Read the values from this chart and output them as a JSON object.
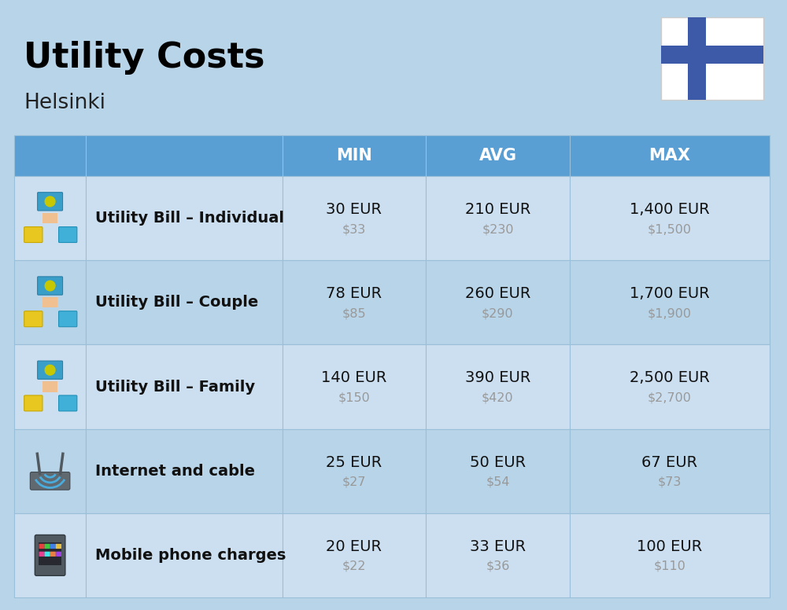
{
  "title": "Utility Costs",
  "subtitle": "Helsinki",
  "background_color": "#b8d4e8",
  "header_bg_color": "#5a9fd4",
  "header_text_color": "#ffffff",
  "row_bg_color_odd": "#ccdff0",
  "row_bg_color_even": "#b8d4e8",
  "cell_border_color": "#9abfd8",
  "title_color": "#000000",
  "subtitle_color": "#222222",
  "eur_color": "#111111",
  "usd_color": "#999999",
  "label_color": "#111111",
  "headers": [
    "MIN",
    "AVG",
    "MAX"
  ],
  "rows": [
    {
      "label": "Utility Bill – Individual",
      "min_eur": "30 EUR",
      "min_usd": "$33",
      "avg_eur": "210 EUR",
      "avg_usd": "$230",
      "max_eur": "1,400 EUR",
      "max_usd": "$1,500"
    },
    {
      "label": "Utility Bill – Couple",
      "min_eur": "78 EUR",
      "min_usd": "$85",
      "avg_eur": "260 EUR",
      "avg_usd": "$290",
      "max_eur": "1,700 EUR",
      "max_usd": "$1,900"
    },
    {
      "label": "Utility Bill – Family",
      "min_eur": "140 EUR",
      "min_usd": "$150",
      "avg_eur": "390 EUR",
      "avg_usd": "$420",
      "max_eur": "2,500 EUR",
      "max_usd": "$2,700"
    },
    {
      "label": "Internet and cable",
      "min_eur": "25 EUR",
      "min_usd": "$27",
      "avg_eur": "50 EUR",
      "avg_usd": "$54",
      "max_eur": "67 EUR",
      "max_usd": "$73"
    },
    {
      "label": "Mobile phone charges",
      "min_eur": "20 EUR",
      "min_usd": "$22",
      "avg_eur": "33 EUR",
      "avg_usd": "$36",
      "max_eur": "100 EUR",
      "max_usd": "$110"
    }
  ],
  "flag_bg": "#ffffff",
  "flag_cross": "#3d5aa8",
  "flag_border": "#cccccc"
}
